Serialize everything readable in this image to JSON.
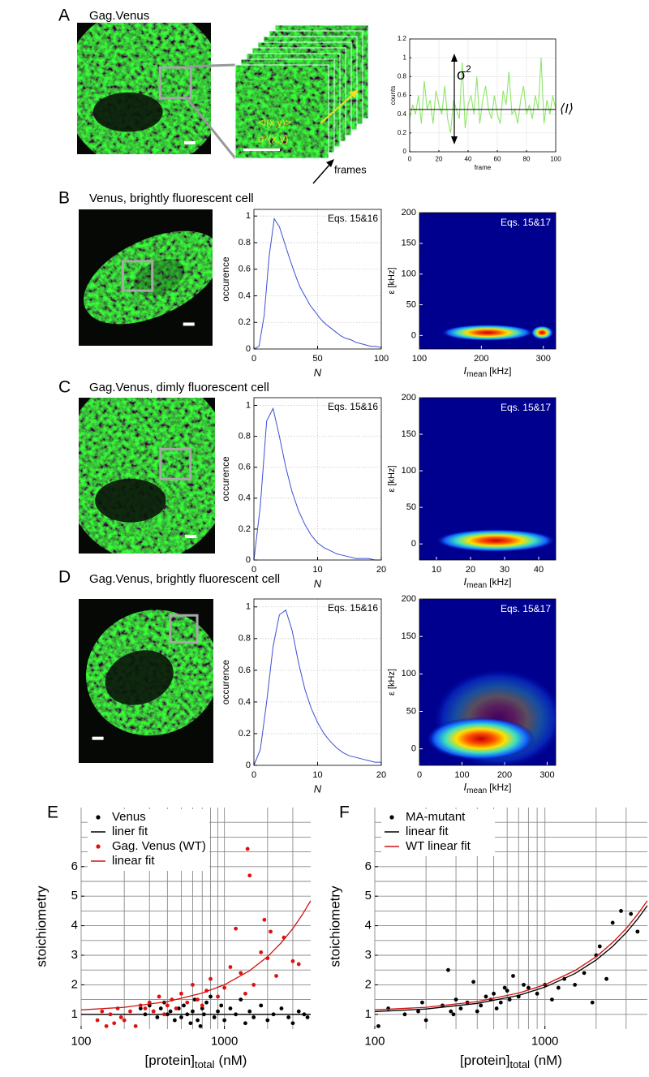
{
  "figure": {
    "panels": {
      "A": {
        "label": "A",
        "title": "Gag.Venus",
        "intensity_label": "<I(x,y)>",
        "variance_label": "σ²(x,y)",
        "frames_label": "frames",
        "trace": {
          "type": "line",
          "color": "#8ee66a",
          "grid": true,
          "xlabel": "frame",
          "ylabel": "counts",
          "sigma_label": "σ",
          "sigma_exp": "2",
          "mean_label": "⟨I⟩",
          "mean": 0.45,
          "xlim": [
            0,
            100
          ],
          "ylim": [
            0,
            1.2
          ],
          "xticks": [
            0,
            20,
            40,
            60,
            80,
            100
          ],
          "yticks": [
            0,
            0.2,
            0.4,
            0.6,
            0.8,
            1,
            1.2
          ],
          "x": [
            0,
            2,
            4,
            6,
            8,
            10,
            12,
            14,
            16,
            18,
            20,
            22,
            24,
            26,
            28,
            30,
            32,
            34,
            36,
            38,
            40,
            42,
            44,
            46,
            48,
            50,
            52,
            54,
            56,
            58,
            60,
            62,
            64,
            66,
            68,
            70,
            72,
            74,
            76,
            78,
            80,
            82,
            84,
            86,
            88,
            90,
            92,
            94,
            96,
            98,
            100
          ],
          "values": [
            0.35,
            0.5,
            0.4,
            0.6,
            0.3,
            0.75,
            0.45,
            0.55,
            0.3,
            0.65,
            0.5,
            0.4,
            0.7,
            0.35,
            0.2,
            0.55,
            0.45,
            0.35,
            0.95,
            0.25,
            0.5,
            0.6,
            0.4,
            0.8,
            0.3,
            0.55,
            0.7,
            0.45,
            0.35,
            0.6,
            0.4,
            0.3,
            0.65,
            0.5,
            0.85,
            0.4,
            0.45,
            0.3,
            0.55,
            0.7,
            0.4,
            0.5,
            0.35,
            0.6,
            0.45,
            1.0,
            0.3,
            0.55,
            0.4,
            0.6,
            0.45
          ]
        }
      },
      "B": {
        "label": "B",
        "title": "Venus, brightly fluorescent cell",
        "hist": {
          "type": "line",
          "color": "#3b4fd6",
          "grid": true,
          "annotation": "Eqs. 15&16",
          "xlabel": "N",
          "ylabel": "occurence",
          "xlim": [
            0,
            100
          ],
          "ylim": [
            0,
            1.05
          ],
          "xticks": [
            0,
            50,
            100
          ],
          "yticks": [
            0,
            0.2,
            0.4,
            0.6,
            0.8,
            1
          ],
          "x": [
            0,
            4,
            8,
            12,
            16,
            20,
            24,
            28,
            32,
            36,
            40,
            44,
            48,
            52,
            56,
            60,
            64,
            68,
            72,
            76,
            80,
            84,
            88,
            92,
            96,
            100
          ],
          "values": [
            0,
            0.02,
            0.25,
            0.7,
            0.98,
            0.92,
            0.8,
            0.68,
            0.57,
            0.47,
            0.4,
            0.33,
            0.28,
            0.23,
            0.19,
            0.16,
            0.13,
            0.1,
            0.08,
            0.07,
            0.05,
            0.04,
            0.03,
            0.02,
            0.02,
            0.01
          ]
        },
        "heat": {
          "type": "heatmap",
          "annotation": "Eqs. 15&17",
          "ylabel": "ε [kHz]",
          "xlabel_main": "I",
          "xlabel_sub": "mean",
          "xlabel_unit": "[kHz]",
          "xlim": [
            100,
            320
          ],
          "ylim": [
            -22,
            200
          ],
          "xticks": [
            100,
            200,
            300
          ],
          "yticks": [
            0,
            50,
            100,
            150,
            200
          ]
        }
      },
      "C": {
        "label": "C",
        "title": "Gag.Venus, dimly fluorescent cell",
        "hist": {
          "type": "line",
          "color": "#3b4fd6",
          "grid": true,
          "annotation": "Eqs. 15&16",
          "xlabel": "N",
          "ylabel": "occurence",
          "xlim": [
            0,
            20
          ],
          "ylim": [
            0,
            1.05
          ],
          "xticks": [
            0,
            10,
            20
          ],
          "yticks": [
            0,
            0.2,
            0.4,
            0.6,
            0.8,
            1
          ],
          "x": [
            0,
            1,
            2,
            3,
            4,
            5,
            6,
            7,
            8,
            9,
            10,
            11,
            12,
            13,
            14,
            15,
            16,
            17,
            18,
            19,
            20
          ],
          "values": [
            0,
            0.35,
            0.9,
            0.98,
            0.8,
            0.6,
            0.44,
            0.32,
            0.23,
            0.16,
            0.11,
            0.08,
            0.06,
            0.04,
            0.03,
            0.02,
            0.01,
            0.01,
            0.01,
            0,
            0
          ]
        },
        "heat": {
          "type": "heatmap",
          "annotation": "Eqs. 15&17",
          "ylabel": "ε [kHz]",
          "xlabel_main": "I",
          "xlabel_sub": "mean",
          "xlabel_unit": "[kHz]",
          "xlim": [
            5,
            45
          ],
          "ylim": [
            -22,
            200
          ],
          "xticks": [
            10,
            20,
            30,
            40
          ],
          "yticks": [
            0,
            50,
            100,
            150,
            200
          ]
        }
      },
      "D": {
        "label": "D",
        "title": "Gag.Venus, brightly fluorescent cell",
        "hist": {
          "type": "line",
          "color": "#3b4fd6",
          "grid": true,
          "annotation": "Eqs. 15&16",
          "xlabel": "N",
          "ylabel": "occurence",
          "xlim": [
            0,
            20
          ],
          "ylim": [
            0,
            1.05
          ],
          "xticks": [
            0,
            10,
            20
          ],
          "yticks": [
            0,
            0.2,
            0.4,
            0.6,
            0.8,
            1
          ],
          "x": [
            0,
            1,
            2,
            3,
            4,
            5,
            6,
            7,
            8,
            9,
            10,
            11,
            12,
            13,
            14,
            15,
            16,
            17,
            18,
            19,
            20
          ],
          "values": [
            0,
            0.1,
            0.4,
            0.75,
            0.95,
            0.98,
            0.85,
            0.65,
            0.48,
            0.36,
            0.27,
            0.2,
            0.15,
            0.11,
            0.08,
            0.06,
            0.05,
            0.04,
            0.03,
            0.02,
            0.02
          ]
        },
        "heat": {
          "type": "heatmap",
          "annotation": "Eqs. 15&17",
          "ylabel": "ε [kHz]",
          "xlabel_main": "I",
          "xlabel_sub": "mean",
          "xlabel_unit": "[kHz]",
          "xlim": [
            0,
            320
          ],
          "ylim": [
            -22,
            200
          ],
          "xticks": [
            0,
            100,
            200,
            300
          ],
          "yticks": [
            0,
            50,
            100,
            150,
            200
          ]
        }
      },
      "E": {
        "label": "E",
        "type": "scatter",
        "xscale": "log",
        "grid": true,
        "ylabel": "stoichiometry",
        "xlabel_main": "[protein]",
        "xlabel_sub": "total",
        "xlabel_unit": "(nM)",
        "xlim": [
          100,
          4000
        ],
        "ylim": [
          0.5,
          8
        ],
        "xticks": [
          100,
          1000
        ],
        "xminor": [
          200,
          300,
          400,
          500,
          600,
          700,
          800,
          900,
          2000,
          3000
        ],
        "yticks": [
          1,
          2,
          3,
          4,
          5,
          6
        ],
        "yminor": [
          1.5,
          2.5,
          3.5,
          4.5,
          5.5,
          6.5,
          7,
          7.5
        ],
        "series": [
          {
            "name": "Venus",
            "color": "#000000",
            "kind": "scatter",
            "x": [
              260,
              280,
              300,
              320,
              340,
              360,
              380,
              400,
              420,
              450,
              480,
              500,
              520,
              550,
              580,
              600,
              620,
              650,
              680,
              700,
              720,
              750,
              800,
              850,
              900,
              950,
              1000,
              1100,
              1200,
              1300,
              1400,
              1500,
              1600,
              1800,
              2000,
              2200,
              2500,
              2800,
              3000,
              3300,
              3600,
              3800
            ],
            "values": [
              1.2,
              1.0,
              1.3,
              1.1,
              0.9,
              1.2,
              1.4,
              1.0,
              1.1,
              0.8,
              1.2,
              0.9,
              1.3,
              1.0,
              0.7,
              1.1,
              1.5,
              0.8,
              0.6,
              1.2,
              1.0,
              1.4,
              1.6,
              0.9,
              1.1,
              1.3,
              0.8,
              1.2,
              1.0,
              1.5,
              0.7,
              1.1,
              0.9,
              1.3,
              0.8,
              1.0,
              1.2,
              0.9,
              0.7,
              1.1,
              1.0,
              0.9
            ]
          },
          {
            "name": "liner fit",
            "color": "#000000",
            "kind": "line",
            "x": [
              100,
              4000
            ],
            "values": [
              1,
              1
            ]
          },
          {
            "name": "Gag. Venus (WT)",
            "color": "#e01010",
            "kind": "scatter",
            "x": [
              130,
              140,
              150,
              160,
              170,
              180,
              190,
              200,
              220,
              240,
              260,
              280,
              300,
              320,
              350,
              380,
              400,
              430,
              460,
              500,
              550,
              600,
              650,
              700,
              750,
              800,
              900,
              1000,
              1100,
              1200,
              1300,
              1400,
              1450,
              1500,
              1600,
              1800,
              1900,
              2000,
              2100,
              2300,
              2600,
              3000,
              3300
            ],
            "values": [
              0.8,
              1.1,
              0.6,
              1.0,
              0.7,
              1.2,
              0.9,
              0.8,
              1.1,
              0.6,
              1.3,
              1.2,
              1.4,
              1.1,
              1.6,
              1.0,
              1.3,
              1.5,
              1.2,
              1.7,
              1.4,
              2.0,
              1.5,
              1.3,
              1.8,
              2.2,
              1.6,
              1.9,
              2.6,
              3.9,
              2.4,
              1.7,
              6.6,
              5.7,
              2.0,
              3.1,
              4.2,
              2.9,
              3.8,
              2.3,
              3.6,
              2.8,
              2.7
            ]
          },
          {
            "name": "linear fit",
            "color": "#d01010",
            "kind": "line",
            "x": [
              100,
              200,
              400,
              700,
              1000,
              1500,
              2000,
              2500,
              3000,
              3500,
              4000
            ],
            "values": [
              1.15,
              1.24,
              1.43,
              1.72,
              2.0,
              2.48,
              2.95,
              3.43,
              3.9,
              4.38,
              4.85
            ]
          }
        ]
      },
      "F": {
        "label": "F",
        "type": "scatter",
        "xscale": "log",
        "grid": true,
        "ylabel": "stoichiometry",
        "xlabel_main": "[protein]",
        "xlabel_sub": "total",
        "xlabel_unit": "(nM)",
        "xlim": [
          100,
          4000
        ],
        "ylim": [
          0.5,
          8
        ],
        "xticks": [
          100,
          1000
        ],
        "xminor": [
          200,
          300,
          400,
          500,
          600,
          700,
          800,
          900,
          2000,
          3000
        ],
        "yticks": [
          1,
          2,
          3,
          4,
          5,
          6
        ],
        "yminor": [
          1.5,
          2.5,
          3.5,
          4.5,
          5.5,
          6.5,
          7,
          7.5
        ],
        "series": [
          {
            "name": "MA-mutant",
            "color": "#000000",
            "kind": "scatter",
            "x": [
              100,
              105,
              120,
              150,
              180,
              190,
              200,
              250,
              270,
              280,
              290,
              300,
              320,
              350,
              380,
              400,
              420,
              450,
              480,
              500,
              520,
              550,
              580,
              600,
              620,
              650,
              700,
              750,
              800,
              900,
              1000,
              1100,
              1200,
              1300,
              1500,
              1700,
              1900,
              2000,
              2100,
              2300,
              2500,
              2800,
              3200,
              3500
            ],
            "values": [
              0.3,
              0.6,
              1.2,
              1.0,
              1.1,
              1.4,
              0.8,
              1.3,
              2.5,
              1.1,
              1.0,
              1.5,
              1.2,
              1.4,
              2.1,
              1.1,
              1.3,
              1.6,
              1.5,
              1.7,
              1.2,
              1.4,
              1.9,
              1.8,
              1.5,
              2.3,
              1.6,
              2.0,
              1.9,
              1.7,
              2.0,
              1.5,
              1.9,
              2.2,
              2.0,
              2.4,
              1.4,
              3.0,
              3.3,
              2.2,
              4.1,
              4.5,
              4.4,
              3.8
            ]
          },
          {
            "name": "linear fit",
            "color": "#000000",
            "kind": "line",
            "x": [
              100,
              200,
              400,
              700,
              1000,
              1500,
              2000,
              2500,
              3000,
              3500,
              4000
            ],
            "values": [
              1.09,
              1.18,
              1.37,
              1.64,
              1.92,
              2.38,
              2.84,
              3.3,
              3.76,
              4.22,
              4.68
            ]
          },
          {
            "name": "WT linear fit",
            "color": "#d01010",
            "kind": "line",
            "x": [
              100,
              200,
              400,
              700,
              1000,
              1500,
              2000,
              2500,
              3000,
              3500,
              4000
            ],
            "values": [
              1.15,
              1.24,
              1.43,
              1.72,
              2.0,
              2.48,
              2.95,
              3.43,
              3.9,
              4.38,
              4.85
            ]
          }
        ]
      }
    }
  }
}
